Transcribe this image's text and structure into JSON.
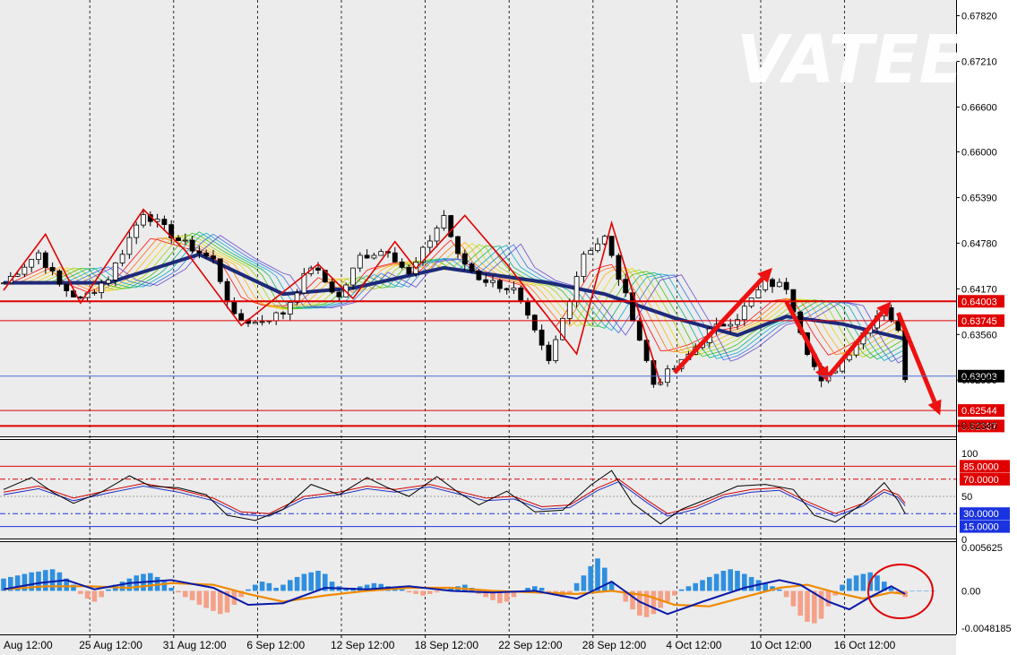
{
  "watermark": "VATEE",
  "chart_data": {
    "type": "candlestick",
    "price_axis": {
      "ticks": [
        "0.67820",
        "0.67210",
        "0.66600",
        "0.66000",
        "0.65390",
        "0.64780",
        "0.64170",
        "0.63560",
        "0.62950",
        "0.62340"
      ],
      "tick_values": [
        0.6782,
        0.6721,
        0.666,
        0.66,
        0.6539,
        0.6478,
        0.6417,
        0.6356,
        0.6295,
        0.6234
      ],
      "range": [
        0.6221,
        0.6803
      ],
      "levels": [
        {
          "label": "0.64003",
          "value": 0.64003,
          "color": "#e00000",
          "style": "thick"
        },
        {
          "label": "0.63745",
          "value": 0.63745,
          "color": "#e00000",
          "style": "thin"
        },
        {
          "label": "0.63003",
          "value": 0.63003,
          "color": "#4a6fd6",
          "style": "current"
        },
        {
          "label": "0.62544",
          "value": 0.62544,
          "color": "#e00000",
          "style": "thin"
        },
        {
          "label": "0.62337",
          "value": 0.62337,
          "color": "#e00000",
          "style": "thick"
        }
      ]
    },
    "x_axis": {
      "labels": [
        "Aug 12:00",
        "25 Aug 12:00",
        "31 Aug 12:00",
        "6 Sep 12:00",
        "12 Sep 12:00",
        "18 Sep 12:00",
        "22 Sep 12:00",
        "28 Sep 12:00",
        "4 Oct 12:00",
        "10 Oct 12:00",
        "16 Oct 12:00"
      ],
      "bar_index": [
        0,
        14,
        26,
        38,
        50,
        62,
        74,
        86,
        98,
        110,
        122
      ],
      "bar_count": 134
    },
    "close_path": [
      [
        0,
        0.6425
      ],
      [
        5,
        0.6465
      ],
      [
        8,
        0.6422
      ],
      [
        11,
        0.6402
      ],
      [
        15,
        0.6432
      ],
      [
        20,
        0.652
      ],
      [
        25,
        0.6482
      ],
      [
        30,
        0.6455
      ],
      [
        33,
        0.6378
      ],
      [
        36,
        0.6372
      ],
      [
        40,
        0.6385
      ],
      [
        44,
        0.6448
      ],
      [
        48,
        0.6405
      ],
      [
        51,
        0.646
      ],
      [
        55,
        0.647
      ],
      [
        58,
        0.6435
      ],
      [
        63,
        0.6515
      ],
      [
        65,
        0.646
      ],
      [
        68,
        0.6432
      ],
      [
        73,
        0.6415
      ],
      [
        78,
        0.6318
      ],
      [
        83,
        0.6465
      ],
      [
        86,
        0.6485
      ],
      [
        90,
        0.638
      ],
      [
        93,
        0.629
      ],
      [
        97,
        0.6318
      ],
      [
        101,
        0.636
      ],
      [
        105,
        0.638
      ],
      [
        109,
        0.6425
      ],
      [
        112,
        0.642
      ],
      [
        115,
        0.6335
      ],
      [
        117,
        0.629
      ],
      [
        120,
        0.6322
      ],
      [
        124,
        0.637
      ],
      [
        126,
        0.6395
      ],
      [
        128,
        0.6358
      ],
      [
        129,
        0.63
      ]
    ],
    "ma_path": [
      [
        0,
        0.6425
      ],
      [
        15,
        0.6425
      ],
      [
        28,
        0.6463
      ],
      [
        40,
        0.641
      ],
      [
        50,
        0.6418
      ],
      [
        63,
        0.6445
      ],
      [
        78,
        0.6425
      ],
      [
        86,
        0.641
      ],
      [
        96,
        0.6378
      ],
      [
        105,
        0.6355
      ],
      [
        112,
        0.638
      ],
      [
        120,
        0.637
      ],
      [
        129,
        0.635
      ]
    ],
    "zigzag": [
      [
        0,
        0.6415
      ],
      [
        6,
        0.649
      ],
      [
        11,
        0.6398
      ],
      [
        20,
        0.6523
      ],
      [
        26,
        0.6468
      ],
      [
        34,
        0.6368
      ],
      [
        45,
        0.645
      ],
      [
        50,
        0.6404
      ],
      [
        56,
        0.648
      ],
      [
        59,
        0.6444
      ],
      [
        66,
        0.6515
      ],
      [
        72,
        0.645
      ],
      [
        82,
        0.633
      ],
      [
        87,
        0.6505
      ],
      [
        94,
        0.629
      ]
    ],
    "arrows": [
      [
        [
          96,
          0.6305
        ],
        [
          110,
          0.6445
        ]
      ],
      [
        [
          112,
          0.64
        ],
        [
          118,
          0.6293
        ]
      ],
      [
        [
          118,
          0.63
        ],
        [
          127,
          0.64
        ]
      ],
      [
        [
          128,
          0.6385
        ],
        [
          134,
          0.6248
        ]
      ]
    ],
    "rsi": {
      "axis_labels": [
        "100",
        "50",
        "0"
      ],
      "levels": [
        {
          "label": "85.0000",
          "value": 85,
          "color": "#e00000"
        },
        {
          "label": "70.0000",
          "value": 70,
          "color": "#e00000"
        },
        {
          "label": "30.0000",
          "value": 30,
          "color": "#1a33e0"
        },
        {
          "label": "15.0000",
          "value": 15,
          "color": "#1a33e0"
        }
      ],
      "k_path": [
        [
          0,
          58
        ],
        [
          4,
          72
        ],
        [
          7,
          55
        ],
        [
          10,
          42
        ],
        [
          14,
          55
        ],
        [
          18,
          74
        ],
        [
          21,
          62
        ],
        [
          25,
          60
        ],
        [
          29,
          52
        ],
        [
          32,
          28
        ],
        [
          36,
          22
        ],
        [
          40,
          35
        ],
        [
          44,
          64
        ],
        [
          48,
          52
        ],
        [
          52,
          72
        ],
        [
          55,
          60
        ],
        [
          58,
          50
        ],
        [
          62,
          73
        ],
        [
          65,
          55
        ],
        [
          68,
          40
        ],
        [
          72,
          56
        ],
        [
          76,
          32
        ],
        [
          80,
          34
        ],
        [
          84,
          63
        ],
        [
          87,
          80
        ],
        [
          90,
          42
        ],
        [
          94,
          18
        ],
        [
          97,
          35
        ],
        [
          101,
          48
        ],
        [
          105,
          62
        ],
        [
          109,
          64
        ],
        [
          113,
          58
        ],
        [
          116,
          28
        ],
        [
          119,
          20
        ],
        [
          123,
          42
        ],
        [
          126,
          66
        ],
        [
          128,
          45
        ],
        [
          129,
          30
        ]
      ],
      "d_path": [
        [
          0,
          55
        ],
        [
          5,
          62
        ],
        [
          10,
          48
        ],
        [
          15,
          57
        ],
        [
          20,
          65
        ],
        [
          25,
          58
        ],
        [
          30,
          48
        ],
        [
          34,
          32
        ],
        [
          38,
          30
        ],
        [
          43,
          50
        ],
        [
          48,
          55
        ],
        [
          52,
          62
        ],
        [
          56,
          58
        ],
        [
          61,
          64
        ],
        [
          65,
          56
        ],
        [
          69,
          48
        ],
        [
          73,
          50
        ],
        [
          77,
          38
        ],
        [
          81,
          40
        ],
        [
          85,
          60
        ],
        [
          88,
          70
        ],
        [
          92,
          46
        ],
        [
          95,
          30
        ],
        [
          99,
          38
        ],
        [
          103,
          52
        ],
        [
          107,
          58
        ],
        [
          111,
          60
        ],
        [
          115,
          44
        ],
        [
          119,
          30
        ],
        [
          123,
          42
        ],
        [
          126,
          58
        ],
        [
          128,
          52
        ],
        [
          129,
          42
        ]
      ]
    },
    "macd": {
      "axis_labels": [
        "0.005625",
        "0.00",
        "-0.0048185"
      ],
      "range": [
        -0.0054,
        0.0062
      ],
      "histogram": [
        0.0016,
        0.0018,
        0.002,
        0.0022,
        0.0024,
        0.0025,
        0.0027,
        0.0028,
        0.0024,
        0.0016,
        0.0008,
        -0.0004,
        -0.001,
        -0.0014,
        -0.0008,
        0.0002,
        0.0008,
        0.0012,
        0.0016,
        0.002,
        0.0022,
        0.0023,
        0.0018,
        0.0012,
        0.0004,
        -0.0002,
        -0.0008,
        -0.0012,
        -0.0018,
        -0.0022,
        -0.0026,
        -0.003,
        -0.0028,
        -0.0018,
        -0.0008,
        0.0002,
        0.0008,
        0.0012,
        0.001,
        0.0004,
        0.0008,
        0.0014,
        0.0018,
        0.0022,
        0.0024,
        0.0026,
        0.0022,
        0.0012,
        0.0006,
        0.0002,
        0.0004,
        0.0006,
        0.0008,
        0.001,
        0.0009,
        0.0006,
        0.0004,
        0.0002,
        -0.0002,
        -0.0004,
        -0.0006,
        -0.0004,
        -0.0002,
        0.0002,
        0.0004,
        0.0006,
        0.0008,
        0.0004,
        -0.0004,
        -0.0008,
        -0.0012,
        -0.0016,
        -0.0014,
        -0.0008,
        -0.0002,
        0.0004,
        0.0006,
        0.0004,
        -0.0002,
        -0.0006,
        -0.0008,
        -0.0004,
        0.001,
        0.002,
        0.0032,
        0.0042,
        0.003,
        0.0012,
        -0.0002,
        -0.0014,
        -0.0024,
        -0.0032,
        -0.0034,
        -0.003,
        -0.0022,
        -0.0014,
        -0.0006,
        0.0002,
        0.0006,
        0.001,
        0.0014,
        0.0018,
        0.0022,
        0.0026,
        0.0028,
        0.0026,
        0.0022,
        0.0018,
        0.0014,
        0.001,
        0.0006,
        0.0002,
        -0.0008,
        -0.002,
        -0.0032,
        -0.004,
        -0.0042,
        -0.0036,
        -0.002,
        -0.0006,
        0.0008,
        0.0016,
        0.002,
        0.0022,
        0.0024,
        0.002,
        0.0012,
        0.0004,
        -0.0004,
        -0.0008,
        0.0,
        0.0,
        0.0,
        0.0
      ],
      "macd_path": [
        [
          0,
          0.0002
        ],
        [
          5,
          0.001
        ],
        [
          9,
          0.0014
        ],
        [
          13,
          0.0002
        ],
        [
          18,
          0.001
        ],
        [
          24,
          0.0014
        ],
        [
          30,
          0.0004
        ],
        [
          35,
          -0.0018
        ],
        [
          40,
          -0.0016
        ],
        [
          46,
          0.0004
        ],
        [
          52,
          0.0002
        ],
        [
          58,
          0.0006
        ],
        [
          64,
          0.0
        ],
        [
          70,
          -0.0002
        ],
        [
          76,
          0.0
        ],
        [
          82,
          -0.001
        ],
        [
          87,
          0.0012
        ],
        [
          91,
          -0.0014
        ],
        [
          95,
          -0.003
        ],
        [
          100,
          -0.0014
        ],
        [
          106,
          0.0004
        ],
        [
          111,
          0.0014
        ],
        [
          114,
          0.0008
        ],
        [
          118,
          -0.0014
        ],
        [
          121,
          -0.0024
        ],
        [
          124,
          -0.0008
        ],
        [
          127,
          0.0006
        ],
        [
          129,
          -0.0004
        ]
      ],
      "signal_path": [
        [
          0,
          0.0002
        ],
        [
          6,
          0.0006
        ],
        [
          12,
          0.0006
        ],
        [
          18,
          0.0004
        ],
        [
          24,
          0.001
        ],
        [
          30,
          0.0008
        ],
        [
          35,
          -0.0004
        ],
        [
          40,
          -0.0014
        ],
        [
          46,
          -0.0006
        ],
        [
          52,
          0.0
        ],
        [
          58,
          0.0004
        ],
        [
          64,
          0.0004
        ],
        [
          70,
          0.0
        ],
        [
          76,
          -0.0002
        ],
        [
          82,
          -0.0004
        ],
        [
          87,
          0.0
        ],
        [
          92,
          -0.0006
        ],
        [
          96,
          -0.0018
        ],
        [
          101,
          -0.002
        ],
        [
          106,
          -0.0008
        ],
        [
          111,
          0.0004
        ],
        [
          115,
          0.0008
        ],
        [
          119,
          -0.0002
        ],
        [
          123,
          -0.001
        ],
        [
          127,
          -0.0002
        ],
        [
          129,
          -0.0004
        ]
      ]
    }
  }
}
